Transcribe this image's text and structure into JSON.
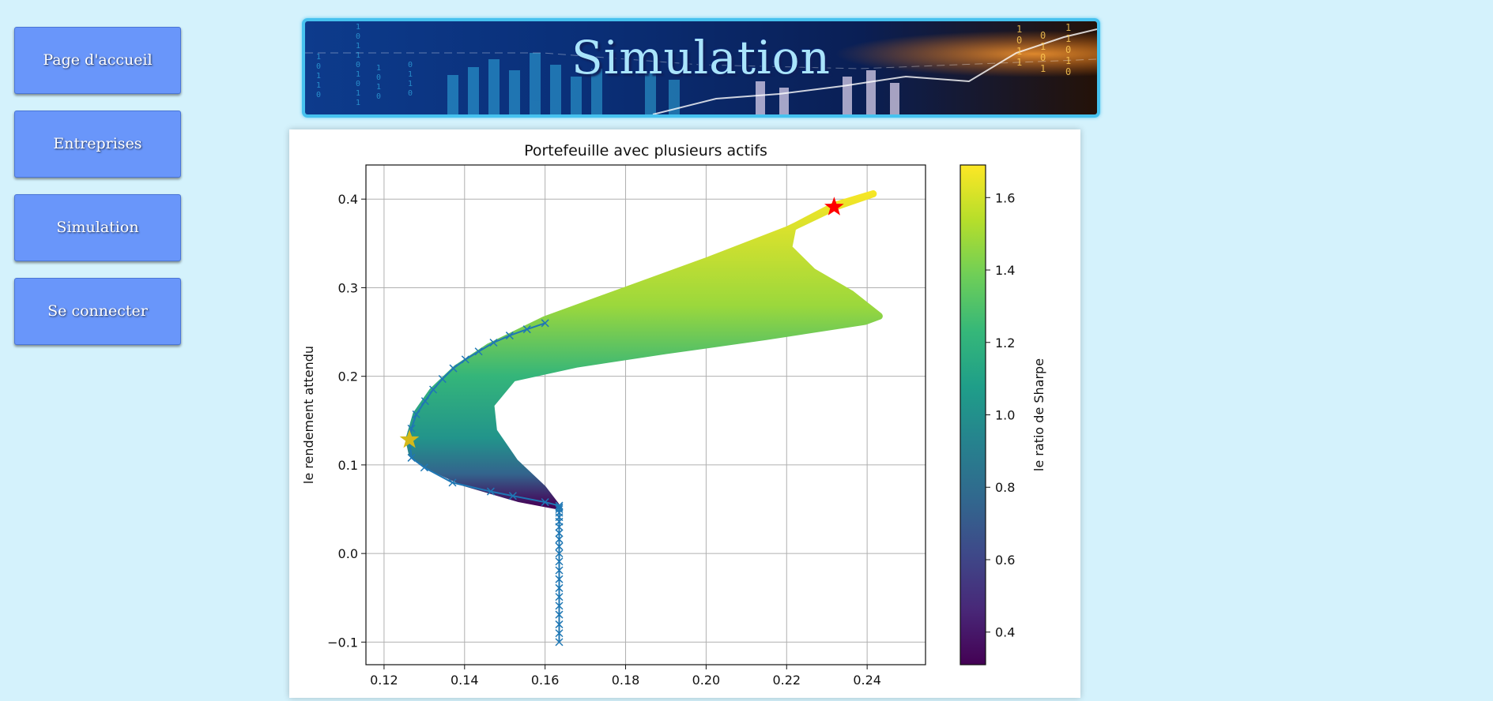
{
  "sidebar": {
    "items": [
      {
        "label": "Page d'accueil"
      },
      {
        "label": "Entreprises"
      },
      {
        "label": "Simulation"
      },
      {
        "label": "Se connecter"
      }
    ]
  },
  "banner": {
    "title": "Simulation"
  },
  "colors": {
    "page_background": "#d4f2fc",
    "nav_button": "#6996fa",
    "banner_border": "#46c2ef",
    "max_sharpe_star": "#ff0000",
    "min_vol_star": "#d4b91a",
    "frontier": "#1f77b4"
  },
  "chart_data": {
    "type": "scatter",
    "title": "Portefeuille avec plusieurs actifs",
    "xlabel": "",
    "ylabel": "le rendement attendu",
    "colorbar_label": "le ratio de Sharpe",
    "xlim": [
      0.1155,
      0.2545
    ],
    "ylim": [
      -0.1255,
      0.4385
    ],
    "xticks": [
      "0.12",
      "0.14",
      "0.16",
      "0.18",
      "0.20",
      "0.22",
      "0.24"
    ],
    "yticks": [
      "−0.1",
      "0.0",
      "0.1",
      "0.2",
      "0.3",
      "0.4"
    ],
    "colorbar_range": [
      0.31,
      1.69
    ],
    "colorbar_ticks": [
      "0.4",
      "0.6",
      "0.8",
      "1.0",
      "1.2",
      "1.4",
      "1.6"
    ],
    "grid": true,
    "colormap": "viridis",
    "cloud_upper_edge": [
      {
        "x": 0.1262,
        "y": 0.1285
      },
      {
        "x": 0.128,
        "y": 0.157
      },
      {
        "x": 0.132,
        "y": 0.183
      },
      {
        "x": 0.138,
        "y": 0.209
      },
      {
        "x": 0.146,
        "y": 0.233
      },
      {
        "x": 0.16,
        "y": 0.264
      },
      {
        "x": 0.18,
        "y": 0.297
      },
      {
        "x": 0.2,
        "y": 0.33
      },
      {
        "x": 0.22,
        "y": 0.365
      },
      {
        "x": 0.232,
        "y": 0.391
      },
      {
        "x": 0.2415,
        "y": 0.406
      }
    ],
    "cloud_outer_edge": [
      {
        "x": 0.2415,
        "y": 0.406
      },
      {
        "x": 0.232,
        "y": 0.393
      },
      {
        "x": 0.2215,
        "y": 0.368
      },
      {
        "x": 0.2205,
        "y": 0.345
      },
      {
        "x": 0.2265,
        "y": 0.318
      },
      {
        "x": 0.236,
        "y": 0.293
      },
      {
        "x": 0.243,
        "y": 0.268
      },
      {
        "x": 0.2395,
        "y": 0.262
      },
      {
        "x": 0.215,
        "y": 0.245
      },
      {
        "x": 0.19,
        "y": 0.229
      },
      {
        "x": 0.168,
        "y": 0.214
      },
      {
        "x": 0.152,
        "y": 0.198
      },
      {
        "x": 0.1465,
        "y": 0.168
      },
      {
        "x": 0.1472,
        "y": 0.138
      },
      {
        "x": 0.1525,
        "y": 0.103
      },
      {
        "x": 0.1595,
        "y": 0.073
      },
      {
        "x": 0.1627,
        "y": 0.054
      },
      {
        "x": 0.1535,
        "y": 0.062
      },
      {
        "x": 0.14,
        "y": 0.08
      },
      {
        "x": 0.131,
        "y": 0.099
      },
      {
        "x": 0.127,
        "y": 0.112
      }
    ],
    "cloud_sharpe_stops": [
      {
        "y": 0.055,
        "sharpe": 0.33
      },
      {
        "y": 0.09,
        "sharpe": 0.75
      },
      {
        "y": 0.13,
        "sharpe": 1.02
      },
      {
        "y": 0.2,
        "sharpe": 1.22
      },
      {
        "y": 0.28,
        "sharpe": 1.48
      },
      {
        "y": 0.41,
        "sharpe": 1.68
      }
    ],
    "efficient_frontier": {
      "x": [
        0.1635,
        0.1635,
        0.1635,
        0.1635,
        0.1635,
        0.1635,
        0.1635,
        0.1635,
        0.1635,
        0.1635,
        0.1635,
        0.1635,
        0.1635,
        0.1635,
        0.1635,
        0.1635,
        0.1635,
        0.1635,
        0.1635,
        0.1635,
        0.1635,
        0.16,
        0.152,
        0.1465,
        0.137,
        0.13,
        0.1268,
        0.1263,
        0.1268,
        0.128,
        0.1302,
        0.1322,
        0.1345,
        0.1372,
        0.1402,
        0.1435,
        0.1472,
        0.1512,
        0.1555,
        0.16
      ],
      "y": [
        -0.1,
        -0.09,
        -0.08,
        -0.069,
        -0.059,
        -0.049,
        -0.039,
        -0.029,
        -0.019,
        -0.009,
        0.0,
        0.008,
        0.016,
        0.023,
        0.03,
        0.036,
        0.041,
        0.046,
        0.05,
        0.052,
        0.054,
        0.058,
        0.065,
        0.07,
        0.08,
        0.097,
        0.108,
        0.128,
        0.141,
        0.157,
        0.172,
        0.185,
        0.197,
        0.209,
        0.219,
        0.228,
        0.238,
        0.246,
        0.253,
        0.26
      ]
    },
    "max_sharpe_portfolio": {
      "x": 0.2318,
      "y": 0.391
    },
    "min_volatility_portfolio": {
      "x": 0.1263,
      "y": 0.1285
    }
  }
}
